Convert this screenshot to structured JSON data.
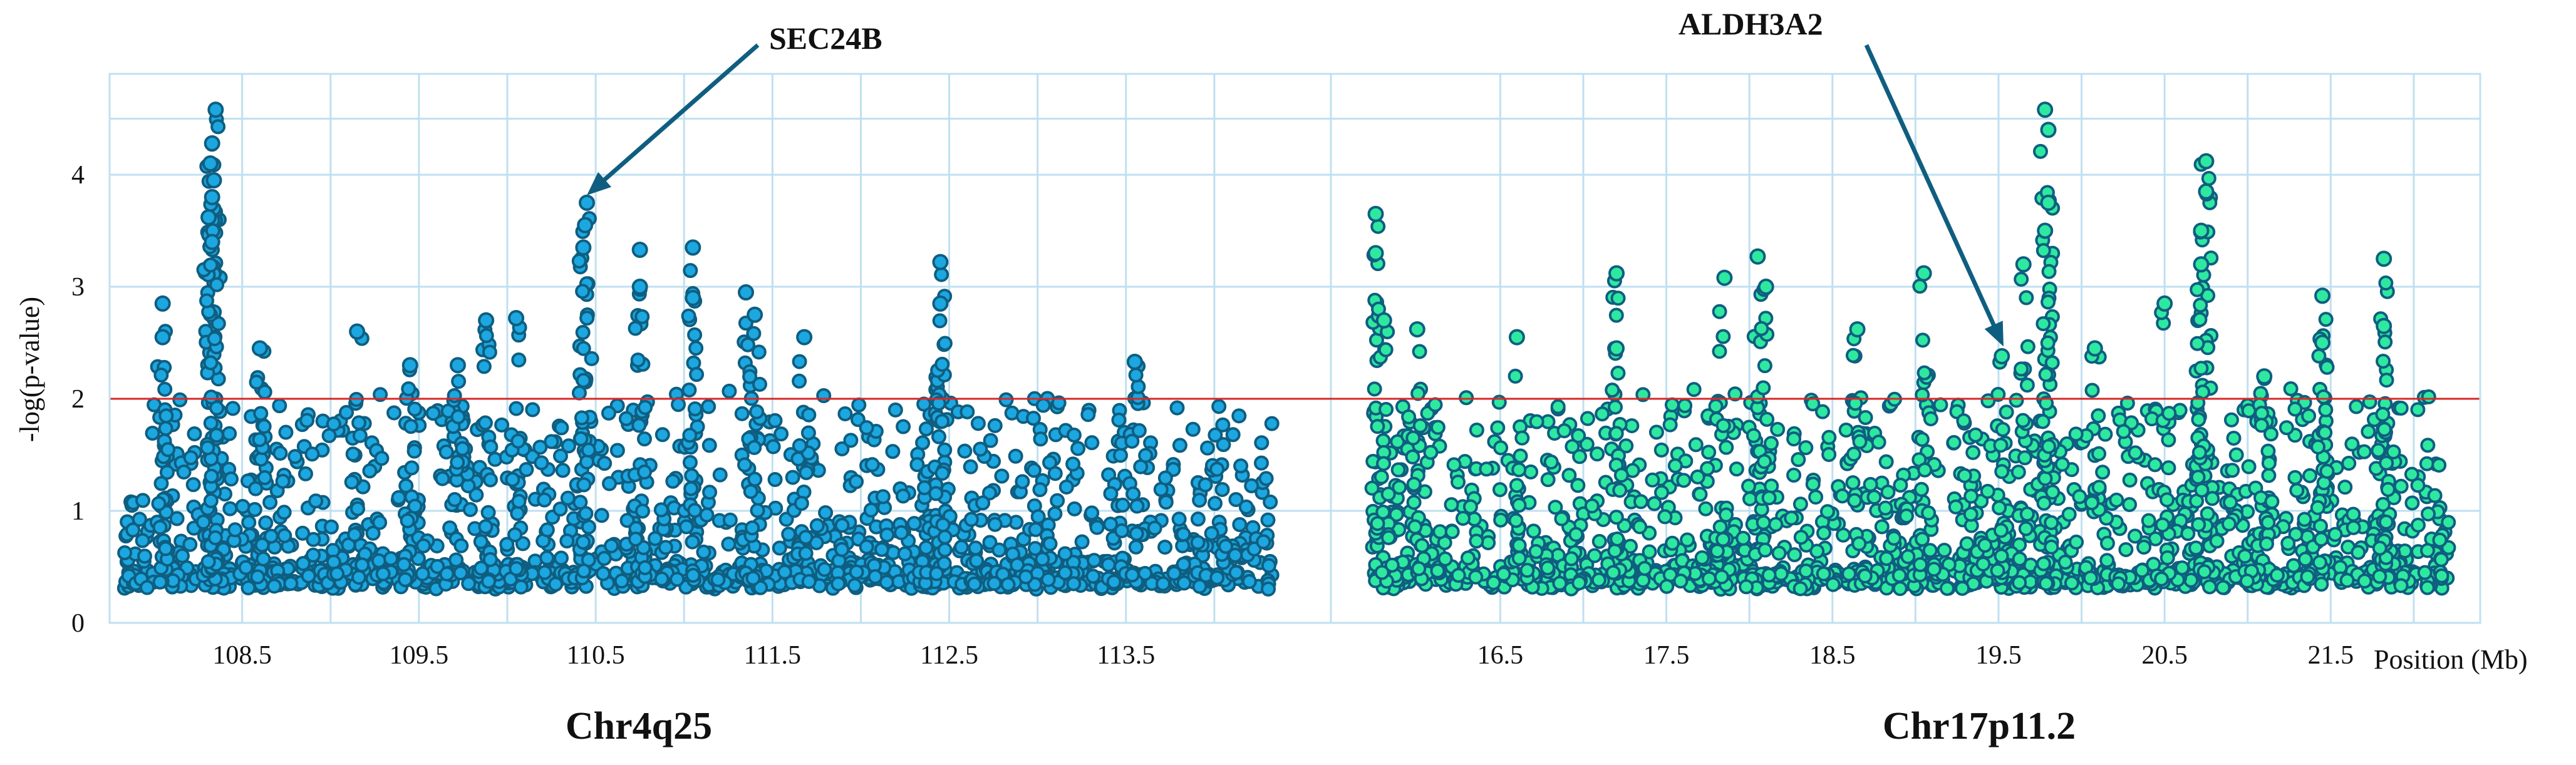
{
  "chart_data": {
    "type": "scatter",
    "title": "",
    "ylabel": "-log(p-value)",
    "xlabel": "Position (Mb)",
    "ylim": [
      0,
      4.9
    ],
    "y_ticks": [
      "0",
      "1",
      "2",
      "3",
      "4"
    ],
    "threshold": 2,
    "threshold_color": "#d62828",
    "grid": true,
    "panels": [
      {
        "name": "Chr4q25",
        "x_range": [
          107.75,
          114.5
        ],
        "x_ticks": [
          "108.5",
          "109.5",
          "110.5",
          "111.5",
          "112.5",
          "113.5"
        ],
        "color": "#1ca7e0",
        "peaks": [
          {
            "x": 108.35,
            "y": 4.58
          },
          {
            "x": 108.33,
            "y": 4.28
          },
          {
            "x": 108.32,
            "y": 4.1
          },
          {
            "x": 108.34,
            "y": 3.95
          },
          {
            "x": 108.33,
            "y": 3.8
          },
          {
            "x": 108.31,
            "y": 3.62
          },
          {
            "x": 108.33,
            "y": 3.4
          },
          {
            "x": 108.05,
            "y": 2.85
          },
          {
            "x": 108.05,
            "y": 2.55
          },
          {
            "x": 108.6,
            "y": 2.45
          },
          {
            "x": 109.15,
            "y": 2.6
          },
          {
            "x": 109.45,
            "y": 2.3
          },
          {
            "x": 109.72,
            "y": 2.3
          },
          {
            "x": 109.88,
            "y": 2.7
          },
          {
            "x": 110.05,
            "y": 2.72
          },
          {
            "x": 110.45,
            "y": 3.75
          },
          {
            "x": 110.44,
            "y": 3.55
          },
          {
            "x": 110.43,
            "y": 3.35
          },
          {
            "x": 110.75,
            "y": 3.33
          },
          {
            "x": 110.75,
            "y": 3.0
          },
          {
            "x": 111.05,
            "y": 3.35
          },
          {
            "x": 111.05,
            "y": 2.9
          },
          {
            "x": 111.35,
            "y": 2.95
          },
          {
            "x": 111.4,
            "y": 2.75
          },
          {
            "x": 111.68,
            "y": 2.55
          },
          {
            "x": 112.45,
            "y": 3.22
          },
          {
            "x": 112.45,
            "y": 2.85
          },
          {
            "x": 113.55,
            "y": 2.33
          }
        ],
        "annotation": {
          "label": "SEC24B",
          "x": 110.45,
          "y": 3.75
        }
      },
      {
        "name": "Chr17p11.2",
        "x_range": [
          15.65,
          22.4
        ],
        "x_ticks": [
          "16.5",
          "17.5",
          "18.5",
          "19.5",
          "20.5",
          "21.5"
        ],
        "color": "#2ee8a0",
        "peaks": [
          {
            "x": 15.75,
            "y": 3.65
          },
          {
            "x": 15.75,
            "y": 3.3
          },
          {
            "x": 15.8,
            "y": 2.7
          },
          {
            "x": 16.0,
            "y": 2.62
          },
          {
            "x": 16.6,
            "y": 2.55
          },
          {
            "x": 17.2,
            "y": 3.12
          },
          {
            "x": 17.2,
            "y": 2.45
          },
          {
            "x": 17.85,
            "y": 3.08
          },
          {
            "x": 18.05,
            "y": 3.27
          },
          {
            "x": 18.1,
            "y": 3.0
          },
          {
            "x": 18.65,
            "y": 2.62
          },
          {
            "x": 19.05,
            "y": 3.12
          },
          {
            "x": 19.52,
            "y": 2.38
          },
          {
            "x": 19.65,
            "y": 3.2
          },
          {
            "x": 19.78,
            "y": 4.58
          },
          {
            "x": 19.8,
            "y": 4.4
          },
          {
            "x": 19.8,
            "y": 3.75
          },
          {
            "x": 19.78,
            "y": 3.5
          },
          {
            "x": 20.08,
            "y": 2.45
          },
          {
            "x": 20.5,
            "y": 2.85
          },
          {
            "x": 20.75,
            "y": 4.12
          },
          {
            "x": 20.75,
            "y": 3.85
          },
          {
            "x": 20.72,
            "y": 3.5
          },
          {
            "x": 20.72,
            "y": 3.2
          },
          {
            "x": 21.1,
            "y": 2.2
          },
          {
            "x": 21.45,
            "y": 2.92
          },
          {
            "x": 21.45,
            "y": 2.5
          },
          {
            "x": 21.82,
            "y": 3.25
          },
          {
            "x": 21.82,
            "y": 2.65
          }
        ],
        "annotation": {
          "label": "ALDH3A2",
          "x": 19.53,
          "y": 2.4
        }
      }
    ]
  }
}
